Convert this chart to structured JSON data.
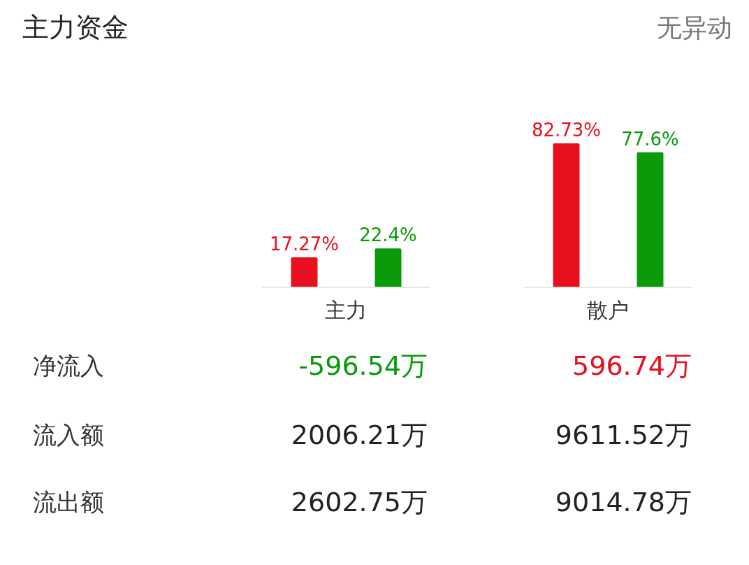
{
  "chart_data": [
    {
      "type": "bar",
      "title": "主力资金",
      "subtitle": "无异动",
      "categories": [
        "主力",
        "散户"
      ],
      "series": [
        {
          "color": "#e8101e",
          "values": [
            17.27,
            82.73
          ],
          "value_labels": [
            "17.27%",
            "82.73%"
          ]
        },
        {
          "color": "#0a9a0a",
          "values": [
            22.4,
            77.6
          ],
          "value_labels": [
            "22.4%",
            "77.6%"
          ]
        }
      ]
    },
    {
      "type": "other",
      "y_categories": [
        "净流入",
        "流入额",
        "流出额"
      ],
      "cell_labels": [
        [
          "-596.54万",
          "596.74万"
        ],
        [
          "2006.21万",
          "9611.52万"
        ],
        [
          "2602.75万",
          "9014.78万"
        ]
      ],
      "colors": [
        [
          "#0a9a0a",
          "#e8101e"
        ],
        [
          "#222222",
          "#222222"
        ],
        [
          "#222222",
          "#222222"
        ]
      ]
    }
  ]
}
